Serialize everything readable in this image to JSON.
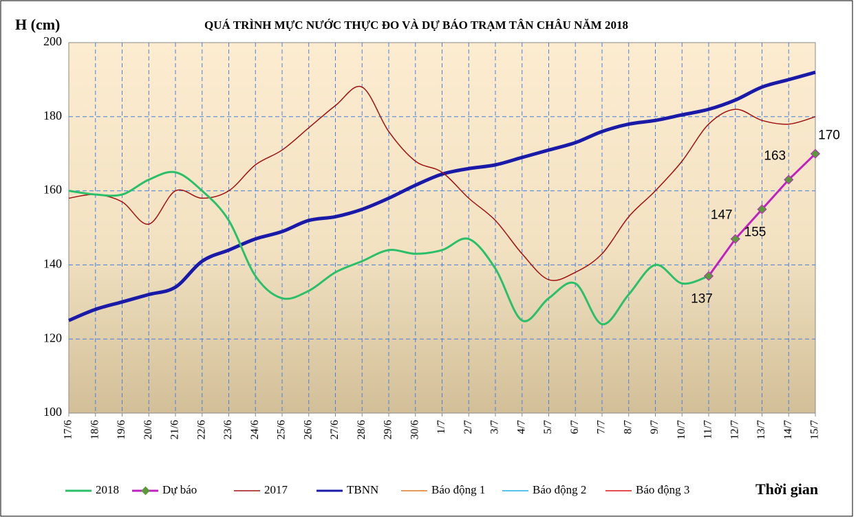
{
  "chart_data": {
    "type": "line",
    "title": "QUÁ TRÌNH MỰC NƯỚC THỰC ĐO VÀ DỰ BÁO TRẠM TÂN CHÂU NĂM 2018",
    "y_label": "H (cm)",
    "x_label": "Thời gian",
    "categories": [
      "17/6",
      "18/6",
      "19/6",
      "20/6",
      "21/6",
      "22/6",
      "23/6",
      "24/6",
      "25/6",
      "26/6",
      "27/6",
      "28/6",
      "29/6",
      "30/6",
      "1/7",
      "2/7",
      "3/7",
      "4/7",
      "5/7",
      "6/7",
      "7/7",
      "8/7",
      "9/7",
      "10/7",
      "11/7",
      "12/7",
      "13/7",
      "14/7",
      "15/7"
    ],
    "ylim": [
      100,
      200
    ],
    "yticks": [
      100,
      120,
      140,
      160,
      180,
      200
    ],
    "grid": true,
    "legend": "bottom",
    "series": [
      {
        "name": "2018",
        "color": "#2bbf6a",
        "width": 3,
        "values": [
          160,
          159,
          159,
          163,
          165,
          160,
          152,
          137,
          131,
          133,
          138,
          141,
          144,
          143,
          144,
          147,
          139,
          125,
          131,
          135,
          124,
          132,
          140,
          135,
          137,
          null,
          null,
          null,
          null
        ]
      },
      {
        "name": "Dự báo",
        "color": "#c020c0",
        "width": 3,
        "markers": true,
        "marker_color": "#5a9a3a",
        "values": [
          null,
          null,
          null,
          null,
          null,
          null,
          null,
          null,
          null,
          null,
          null,
          null,
          null,
          null,
          null,
          null,
          null,
          null,
          null,
          null,
          null,
          null,
          null,
          null,
          137,
          147,
          155,
          163,
          170
        ]
      },
      {
        "name": "2017",
        "color": "#a01010",
        "width": 1.5,
        "values": [
          158,
          159,
          157,
          151,
          160,
          158,
          160,
          167,
          171,
          177,
          183,
          188,
          176,
          168,
          165,
          158,
          152,
          143,
          136,
          138,
          143,
          153,
          160,
          168,
          178,
          182,
          179,
          178,
          180
        ]
      },
      {
        "name": "TBNN",
        "color": "#1a1aa8",
        "width": 5,
        "values": [
          125,
          128,
          130,
          132,
          134,
          141,
          144,
          147,
          149,
          152,
          153,
          155,
          158,
          161.5,
          164.5,
          166,
          167,
          169,
          171,
          173,
          176,
          178,
          179,
          180.5,
          182,
          184.5,
          188,
          190,
          192
        ]
      },
      {
        "name": "Báo động 1",
        "color": "#e07a20",
        "width": 1.5,
        "values": [
          null,
          null,
          null,
          null,
          null,
          null,
          null,
          null,
          null,
          null,
          null,
          null,
          null,
          null,
          null,
          null,
          null,
          null,
          null,
          null,
          null,
          null,
          null,
          null,
          null,
          null,
          null,
          null,
          null
        ]
      },
      {
        "name": "Báo động 2",
        "color": "#20b0e8",
        "width": 1.5,
        "values": [
          null,
          null,
          null,
          null,
          null,
          null,
          null,
          null,
          null,
          null,
          null,
          null,
          null,
          null,
          null,
          null,
          null,
          null,
          null,
          null,
          null,
          null,
          null,
          null,
          null,
          null,
          null,
          null,
          null
        ]
      },
      {
        "name": "Báo động 3",
        "color": "#e01010",
        "width": 1.5,
        "values": [
          null,
          null,
          null,
          null,
          null,
          null,
          null,
          null,
          null,
          null,
          null,
          null,
          null,
          null,
          null,
          null,
          null,
          null,
          null,
          null,
          null,
          null,
          null,
          null,
          null,
          null,
          null,
          null,
          null
        ]
      }
    ]
  }
}
